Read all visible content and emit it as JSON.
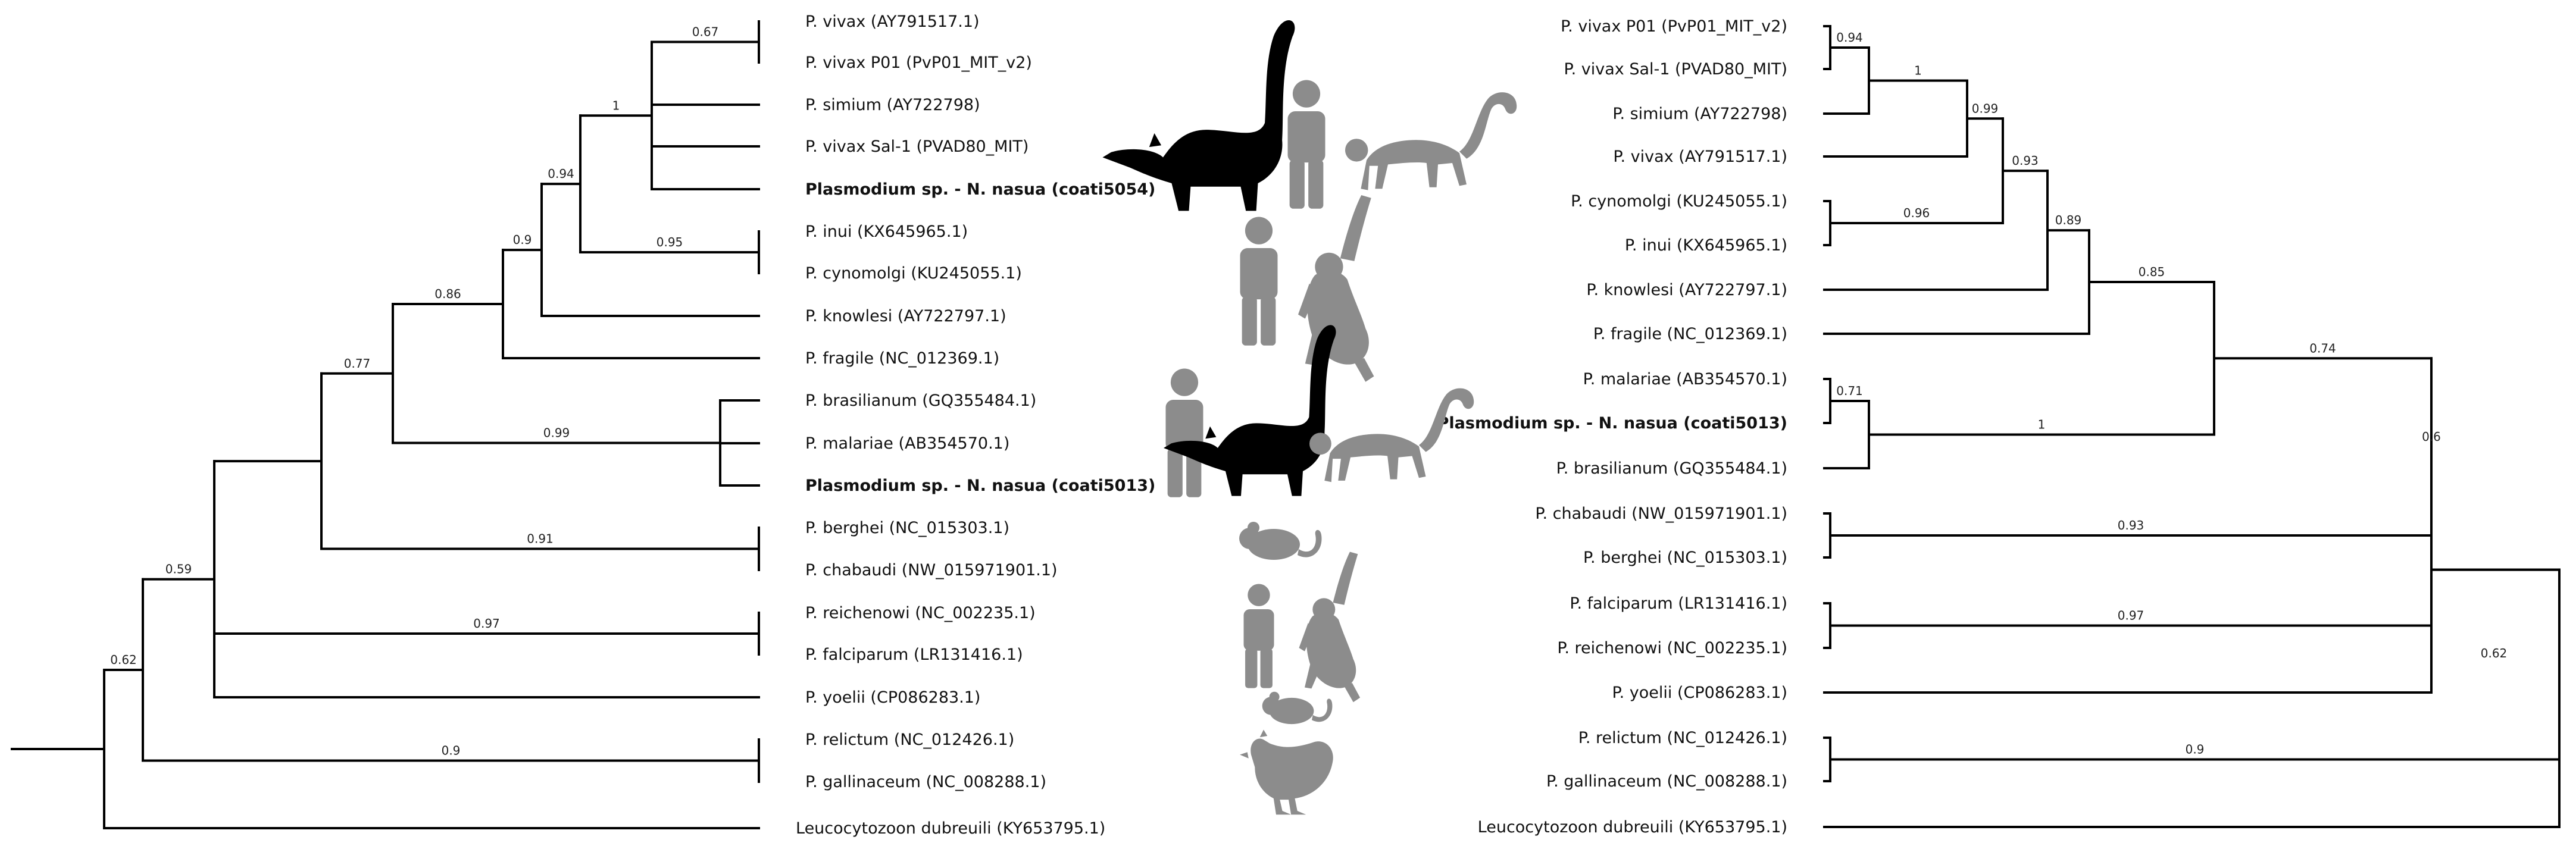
{
  "left_tree": {
    "tips": [
      {
        "id": "A",
        "label": "P. vivax (AY791517.1)"
      },
      {
        "id": "B",
        "label": "P. vivax P01 (PvP01_MIT_v2)"
      },
      {
        "id": "C",
        "label": "P. simium (AY722798)"
      },
      {
        "id": "D",
        "label": "P. vivax Sal-1 (PVAD80_MIT)"
      },
      {
        "id": "E",
        "label": "Plasmodium sp. - N. nasua (coati5054)",
        "bold": true
      },
      {
        "id": "F",
        "label": "P. inui (KX645965.1)"
      },
      {
        "id": "G",
        "label": "P. cynomolgi (KU245055.1)"
      },
      {
        "id": "H",
        "label": "P. knowlesi (AY722797.1)"
      },
      {
        "id": "I",
        "label": "P. fragile (NC_012369.1)"
      },
      {
        "id": "J",
        "label": "P. brasilianum (GQ355484.1)"
      },
      {
        "id": "K",
        "label": "P. malariae (AB354570.1)"
      },
      {
        "id": "L",
        "label": "Plasmodium sp. - N. nasua (coati5013)",
        "bold": true
      },
      {
        "id": "M",
        "label": "P. berghei (NC_015303.1)"
      },
      {
        "id": "N",
        "label": "P. chabaudi (NW_015971901.1)"
      },
      {
        "id": "O",
        "label": "P. reichenowi (NC_002235.1)"
      },
      {
        "id": "P",
        "label": "P. falciparum (LR131416.1)"
      },
      {
        "id": "Q",
        "label": "P. yoelii (CP086283.1)"
      },
      {
        "id": "R",
        "label": "P. relictum (NC_012426.1)"
      },
      {
        "id": "S",
        "label": "P. gallinaceum (NC_008288.1)"
      },
      {
        "id": "T",
        "label": "Leucocytozoon dubreuili (KY653795.1)"
      }
    ],
    "clades": [
      {
        "id": "n1",
        "children": [
          "A",
          "B"
        ],
        "support": "0.67"
      },
      {
        "id": "n2",
        "children": [
          "n1",
          "C",
          "D",
          "E"
        ],
        "support": "1"
      },
      {
        "id": "n3",
        "children": [
          "F",
          "G"
        ],
        "support": "0.95"
      },
      {
        "id": "n4",
        "children": [
          "n2",
          "n3"
        ],
        "support": "0.94"
      },
      {
        "id": "n5",
        "children": [
          "n4",
          "H"
        ],
        "support": "0.9"
      },
      {
        "id": "n6",
        "children": [
          "n5",
          "I"
        ],
        "support": "0.86"
      },
      {
        "id": "n7",
        "children": [
          "J",
          "K",
          "L"
        ],
        "support": "0.99"
      },
      {
        "id": "n8",
        "children": [
          "n6",
          "n7"
        ],
        "support": "0.77"
      },
      {
        "id": "n9",
        "children": [
          "M",
          "N"
        ],
        "support": "0.91"
      },
      {
        "id": "n10",
        "children": [
          "n8",
          "n9"
        ],
        "support": ""
      },
      {
        "id": "n11",
        "children": [
          "O",
          "P"
        ],
        "support": "0.97"
      },
      {
        "id": "n12",
        "children": [
          "n10",
          "n11",
          "Q"
        ],
        "support": "0.59"
      },
      {
        "id": "n13",
        "children": [
          "R",
          "S"
        ],
        "support": "0.9"
      },
      {
        "id": "n14",
        "children": [
          "n12",
          "n13"
        ],
        "support": "0.62"
      },
      {
        "id": "root",
        "children": [
          "n14",
          "T"
        ],
        "support": ""
      }
    ]
  },
  "right_tree": {
    "tips": [
      {
        "id": "a",
        "label": "P. vivax P01 (PvP01_MIT_v2)"
      },
      {
        "id": "b",
        "label": "P. vivax Sal-1 (PVAD80_MIT)"
      },
      {
        "id": "c",
        "label": "P. simium (AY722798)"
      },
      {
        "id": "d",
        "label": "P. vivax (AY791517.1)"
      },
      {
        "id": "e",
        "label": "P. cynomolgi (KU245055.1)"
      },
      {
        "id": "f",
        "label": "P. inui (KX645965.1)"
      },
      {
        "id": "g",
        "label": "P. knowlesi (AY722797.1)"
      },
      {
        "id": "h",
        "label": "P. fragile (NC_012369.1)"
      },
      {
        "id": "i",
        "label": "P. malariae (AB354570.1)"
      },
      {
        "id": "j",
        "label": "Plasmodium sp. - N. nasua (coati5013)",
        "bold": true
      },
      {
        "id": "k",
        "label": "P. brasilianum (GQ355484.1)"
      },
      {
        "id": "l",
        "label": "P. chabaudi (NW_015971901.1)"
      },
      {
        "id": "m",
        "label": "P. berghei (NC_015303.1)"
      },
      {
        "id": "n",
        "label": "P. falciparum (LR131416.1)"
      },
      {
        "id": "o",
        "label": "P. reichenowi (NC_002235.1)"
      },
      {
        "id": "p",
        "label": "P. yoelii (CP086283.1)"
      },
      {
        "id": "q",
        "label": "P. relictum (NC_012426.1)"
      },
      {
        "id": "r",
        "label": "P. gallinaceum (NC_008288.1)"
      },
      {
        "id": "s",
        "label": "Leucocytozoon dubreuili (KY653795.1)"
      }
    ],
    "clades": [
      {
        "id": "m1",
        "children": [
          "a",
          "b"
        ],
        "support": "0.94"
      },
      {
        "id": "m2",
        "children": [
          "m1",
          "c"
        ],
        "support": "1"
      },
      {
        "id": "m3",
        "children": [
          "m2",
          "d"
        ],
        "support": "0.99"
      },
      {
        "id": "m4",
        "children": [
          "e",
          "f"
        ],
        "support": "0.96"
      },
      {
        "id": "m5",
        "children": [
          "m3",
          "m4"
        ],
        "support": "0.93"
      },
      {
        "id": "m6",
        "children": [
          "m5",
          "g"
        ],
        "support": "0.89"
      },
      {
        "id": "m7",
        "children": [
          "m6",
          "h"
        ],
        "support": "0.85"
      },
      {
        "id": "m8",
        "children": [
          "i",
          "j"
        ],
        "support": "0.71"
      },
      {
        "id": "m9",
        "children": [
          "m8",
          "k"
        ],
        "support": "1"
      },
      {
        "id": "m10",
        "children": [
          "m7",
          "m9"
        ],
        "support": "0.74"
      },
      {
        "id": "m11",
        "children": [
          "l",
          "m"
        ],
        "support": "0.93"
      },
      {
        "id": "m12",
        "children": [
          "m10",
          "m11"
        ],
        "support": "0.6"
      },
      {
        "id": "m13",
        "children": [
          "n",
          "o"
        ],
        "support": "0.97"
      },
      {
        "id": "m14",
        "children": [
          "m12",
          "m13",
          "p"
        ],
        "support": ""
      },
      {
        "id": "m15",
        "children": [
          "q",
          "r"
        ],
        "support": "0.9"
      },
      {
        "id": "m16",
        "children": [
          "m14",
          "m15"
        ],
        "support": "0.62"
      },
      {
        "id": "rootR",
        "children": [
          "m16",
          "s"
        ],
        "support": ""
      }
    ]
  },
  "host_icons": [
    {
      "group": "vivax-clade",
      "icons": [
        "coati-icon",
        "human-icon",
        "monkey-icon"
      ]
    },
    {
      "group": "inui-cynomolgi",
      "icons": [
        "human-icon",
        "macaque-icon"
      ]
    },
    {
      "group": "malariae-clade",
      "icons": [
        "human-icon",
        "coati-icon",
        "monkey-icon"
      ]
    },
    {
      "group": "rodent-clade",
      "icons": [
        "mouse-icon"
      ]
    },
    {
      "group": "falciparum-clade",
      "icons": [
        "human-icon",
        "ape-icon"
      ]
    },
    {
      "group": "yoelii",
      "icons": [
        "mouse-icon"
      ]
    },
    {
      "group": "avian-clade",
      "icons": [
        "chicken-icon"
      ]
    }
  ],
  "colors": {
    "branch": "#000000",
    "host_grey": "#8c8c8c",
    "coati": "#000000"
  }
}
